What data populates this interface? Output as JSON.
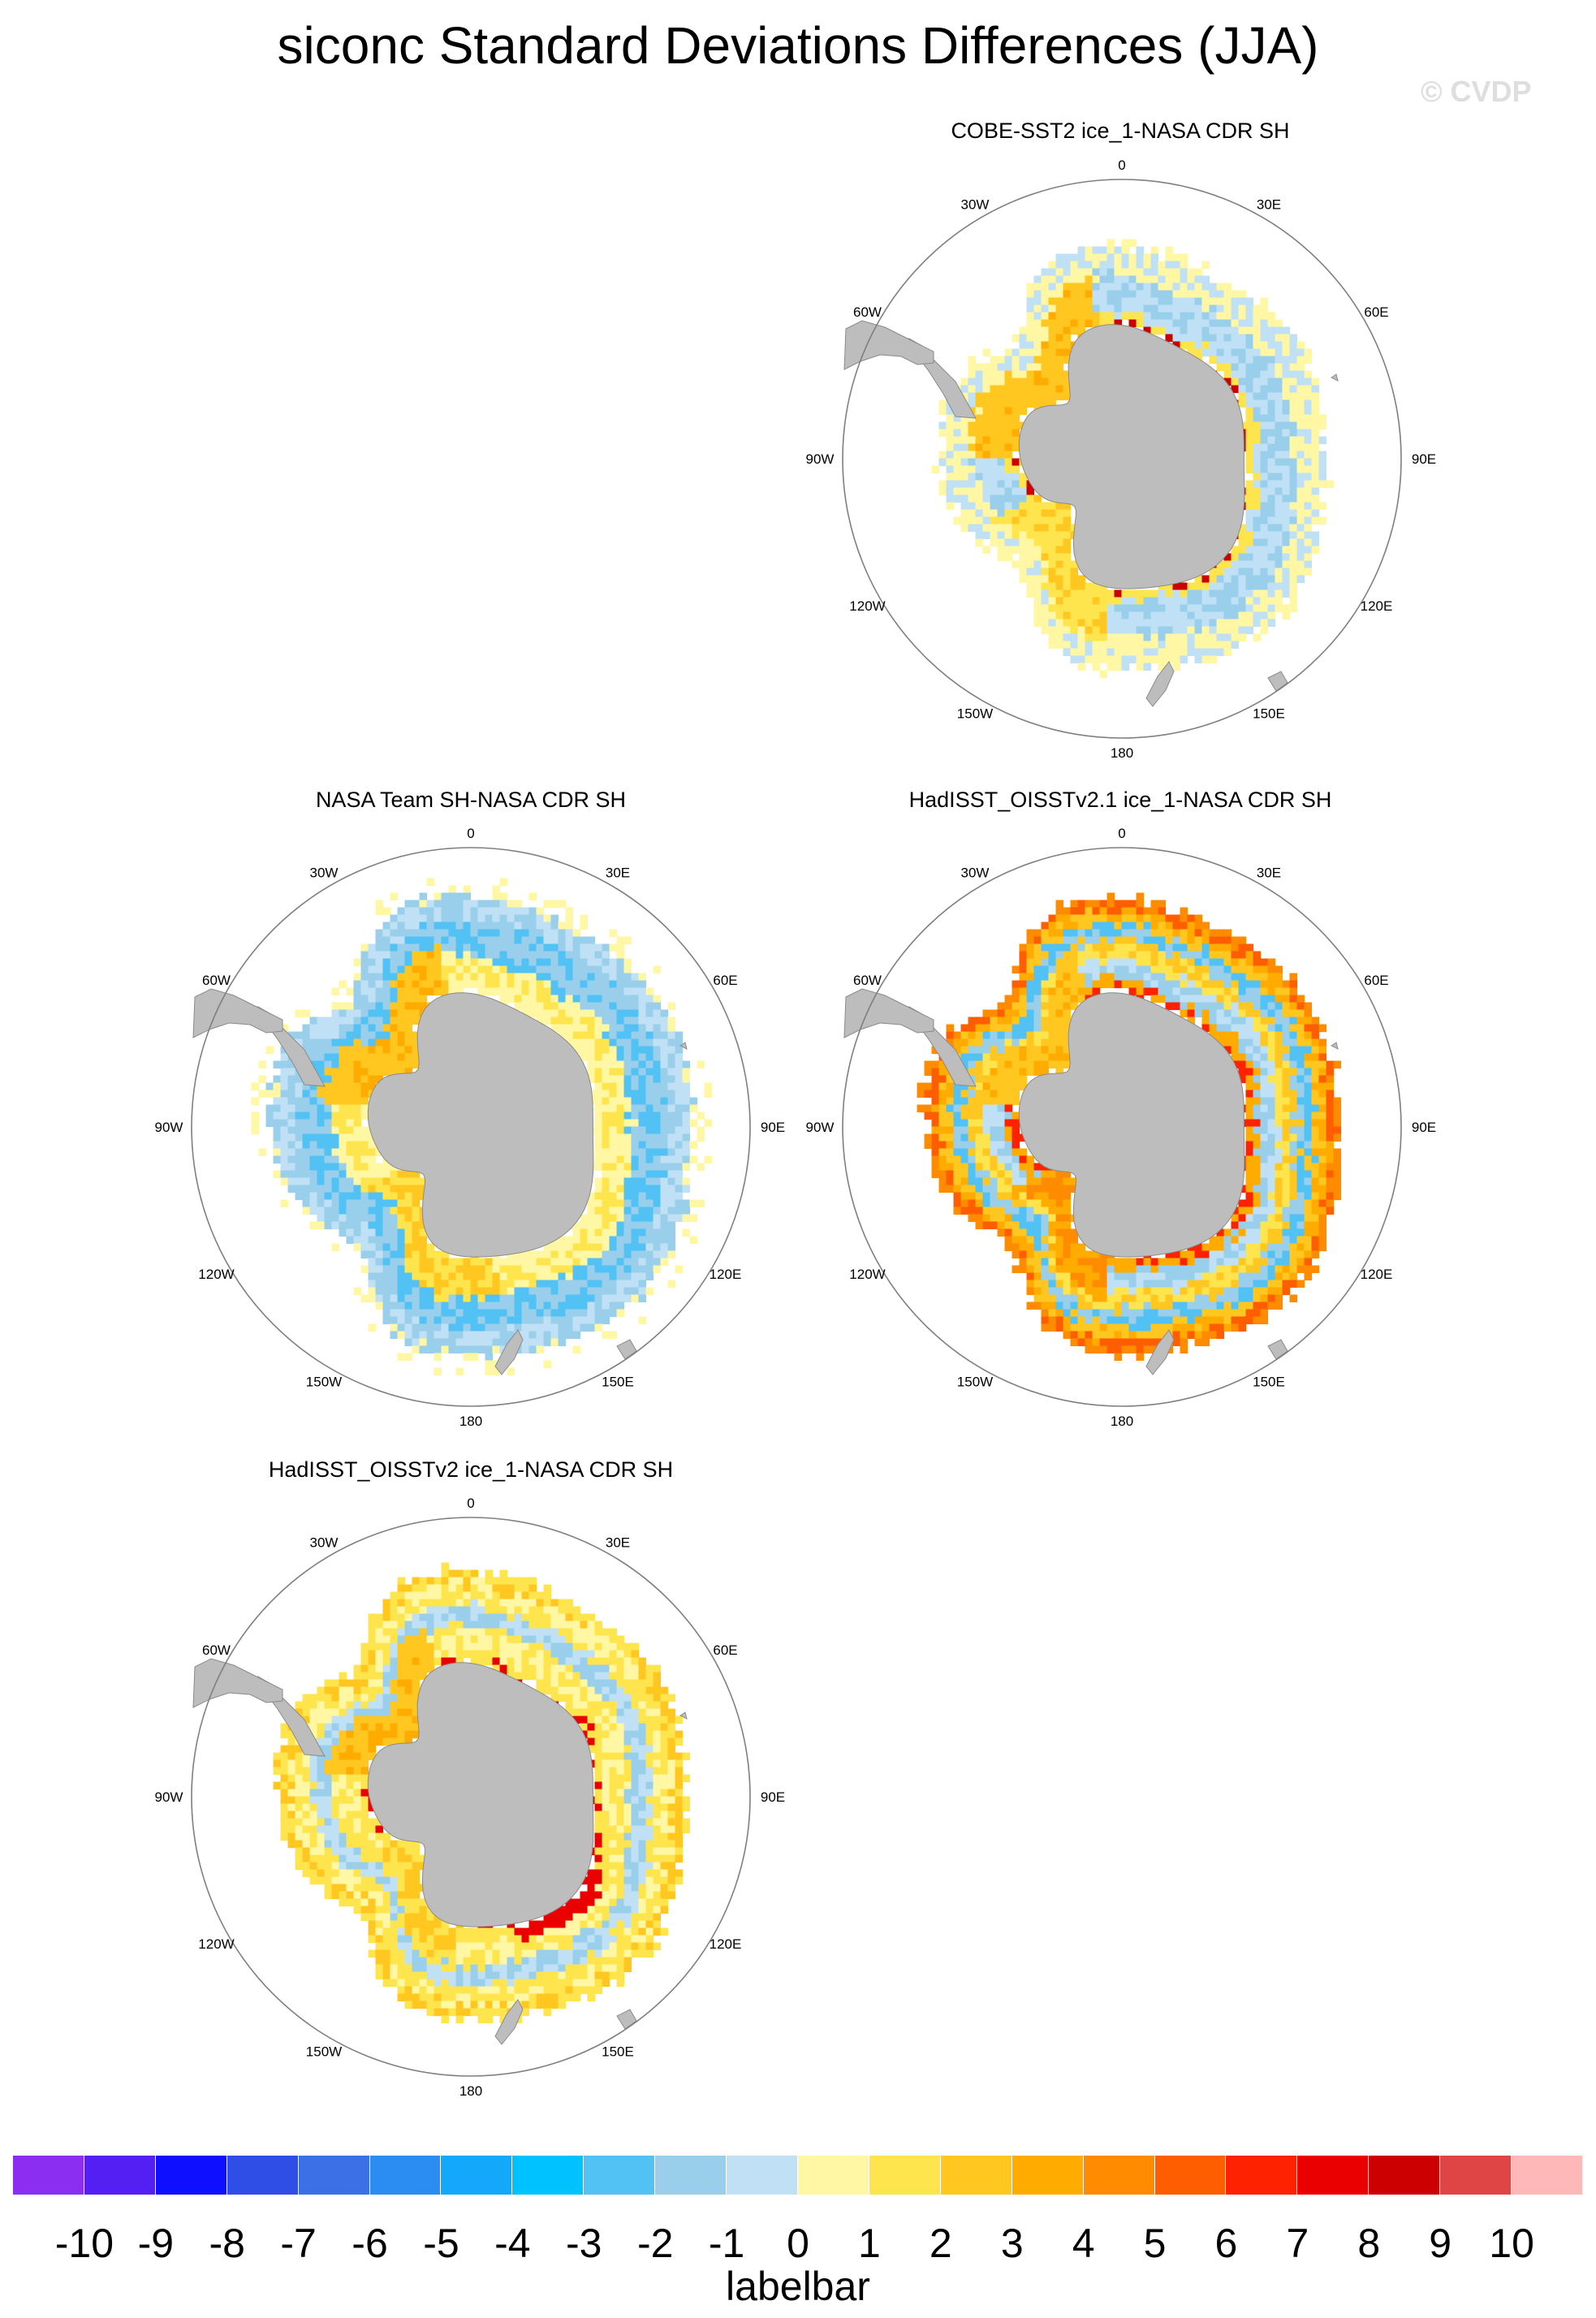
{
  "title": "siconc Standard Deviations Differences (JJA)",
  "watermark": "© CVDP",
  "panels": [
    {
      "title": "COBE-SST2 ice_1-NASA CDR SH",
      "pattern": "cobe"
    },
    {
      "title": "NASA Team SH-NASA CDR SH",
      "pattern": "nasateam"
    },
    {
      "title": "HadISST_OISSTv2.1 ice_1-NASA CDR SH",
      "pattern": "had21"
    },
    {
      "title": "HadISST_OISSTv2 ice_1-NASA CDR SH",
      "pattern": "had2"
    }
  ],
  "longitude_labels": [
    {
      "deg": 0,
      "text": "0"
    },
    {
      "deg": 30,
      "text": "30E"
    },
    {
      "deg": 60,
      "text": "60E"
    },
    {
      "deg": 90,
      "text": "90E"
    },
    {
      "deg": 120,
      "text": "120E"
    },
    {
      "deg": 150,
      "text": "150E"
    },
    {
      "deg": 180,
      "text": "180"
    },
    {
      "deg": -150,
      "text": "150W"
    },
    {
      "deg": -120,
      "text": "120W"
    },
    {
      "deg": -90,
      "text": "90W"
    },
    {
      "deg": -60,
      "text": "60W"
    },
    {
      "deg": -30,
      "text": "30W"
    }
  ],
  "colors": {
    "land": "#bdbdbd",
    "map_border": "#7f7f7f",
    "scale": [
      "#8c2ef2",
      "#531ff2",
      "#0f0fff",
      "#2e4ee6",
      "#3b70e6",
      "#2b8cf2",
      "#14a8fa",
      "#00c2ff",
      "#52c2f5",
      "#99cfeb",
      "#bfe0f5",
      "#fff7a3",
      "#ffe54d",
      "#ffc71f",
      "#ffab00",
      "#ff8c00",
      "#ff5e00",
      "#ff2200",
      "#eb0000",
      "#cc0000",
      "#e04545",
      "#ffb8b8"
    ]
  },
  "labelbar": {
    "title": "labelbar",
    "ticks": [
      "-10",
      "-9",
      "-8",
      "-7",
      "-6",
      "-5",
      "-4",
      "-3",
      "-2",
      "-1",
      "0",
      "1",
      "2",
      "3",
      "4",
      "5",
      "6",
      "7",
      "8",
      "9",
      "10"
    ]
  }
}
